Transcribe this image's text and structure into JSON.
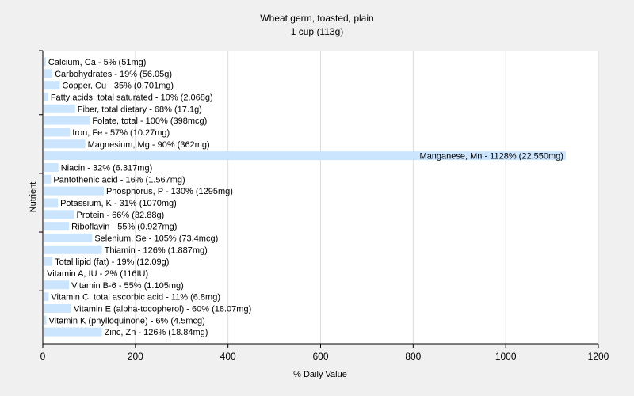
{
  "chart_data": {
    "type": "bar",
    "orientation": "horizontal",
    "title": "Wheat germ, toasted, plain",
    "subtitle": "1 cup (113g)",
    "xlabel": "% Daily Value",
    "ylabel": "Nutrient",
    "xlim": [
      0,
      1200
    ],
    "xticks": [
      0,
      200,
      400,
      600,
      800,
      1000,
      1200
    ],
    "grid": "vertical",
    "bar_color": "#cce5ff",
    "categories": [
      "Calcium, Ca - 5% (51mg)",
      "Carbohydrates - 19% (56.05g)",
      "Copper, Cu - 35% (0.701mg)",
      "Fatty acids, total saturated - 10% (2.068g)",
      "Fiber, total dietary - 68% (17.1g)",
      "Folate, total - 100% (398mcg)",
      "Iron, Fe - 57% (10.27mg)",
      "Magnesium, Mg - 90% (362mg)",
      "Manganese, Mn - 1128% (22.550mg)",
      "Niacin - 32% (6.317mg)",
      "Pantothenic acid - 16% (1.567mg)",
      "Phosphorus, P - 130% (1295mg)",
      "Potassium, K - 31% (1070mg)",
      "Protein - 66% (32.88g)",
      "Riboflavin - 55% (0.927mg)",
      "Selenium, Se - 105% (73.4mcg)",
      "Thiamin - 126% (1.887mg)",
      "Total lipid (fat) - 19% (12.09g)",
      "Vitamin A, IU - 2% (116IU)",
      "Vitamin B-6 - 55% (1.105mg)",
      "Vitamin C, total ascorbic acid - 11% (6.8mg)",
      "Vitamin E (alpha-tocopherol) - 60% (18.07mg)",
      "Vitamin K (phylloquinone) - 6% (4.5mcg)",
      "Zinc, Zn - 126% (18.84mg)"
    ],
    "values": [
      5,
      19,
      35,
      10,
      68,
      100,
      57,
      90,
      1128,
      32,
      16,
      130,
      31,
      66,
      55,
      105,
      126,
      19,
      2,
      55,
      11,
      60,
      6,
      126
    ]
  }
}
